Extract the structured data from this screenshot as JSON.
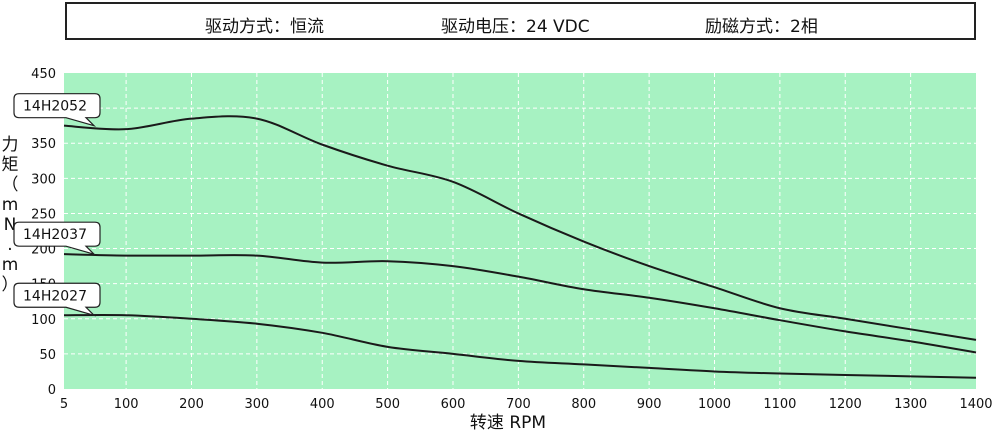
{
  "header": {
    "drive_method": "驱动方式：恒流",
    "drive_voltage": "驱动电压：24 VDC",
    "excitation": "励磁方式：2相"
  },
  "chart_data": {
    "type": "line",
    "xlabel": "转速 RPM",
    "ylabel": "力矩（mN.m）",
    "xlim": [
      5,
      1400
    ],
    "ylim": [
      0,
      450
    ],
    "x_ticks": [
      5,
      100,
      200,
      300,
      400,
      500,
      600,
      700,
      800,
      900,
      1000,
      1100,
      1200,
      1300,
      1400
    ],
    "y_ticks": [
      0,
      50,
      100,
      150,
      200,
      250,
      300,
      350,
      400,
      450
    ],
    "grid": true,
    "background": "#a7f2c2",
    "line_color": "#1a1a1a",
    "series": [
      {
        "name": "14H2052",
        "x": [
          5,
          100,
          200,
          300,
          400,
          500,
          600,
          700,
          800,
          900,
          1000,
          1100,
          1200,
          1300,
          1400
        ],
        "values": [
          375,
          370,
          385,
          385,
          348,
          318,
          295,
          250,
          210,
          175,
          145,
          115,
          100,
          85,
          70
        ]
      },
      {
        "name": "14H2037",
        "x": [
          5,
          100,
          200,
          300,
          400,
          500,
          600,
          700,
          800,
          900,
          1000,
          1100,
          1200,
          1300,
          1400
        ],
        "values": [
          192,
          190,
          190,
          190,
          180,
          182,
          175,
          160,
          142,
          130,
          115,
          98,
          82,
          68,
          52
        ]
      },
      {
        "name": "14H2027",
        "x": [
          5,
          100,
          200,
          300,
          400,
          500,
          600,
          700,
          800,
          900,
          1000,
          1100,
          1200,
          1300,
          1400
        ],
        "values": [
          105,
          105,
          100,
          93,
          80,
          60,
          50,
          40,
          35,
          30,
          25,
          22,
          20,
          18,
          16
        ]
      }
    ]
  }
}
